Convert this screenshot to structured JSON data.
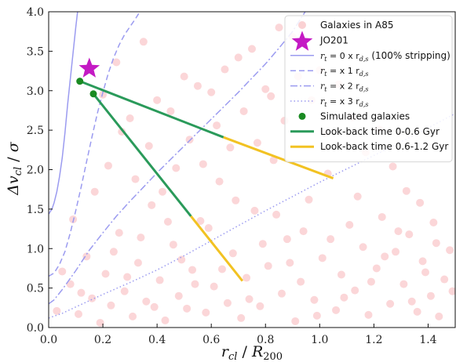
{
  "chart_data": {
    "type": "scatter",
    "xlabel": "r_cl / R_200",
    "ylabel": "Δv_cl / σ",
    "xlim": [
      0,
      1.5
    ],
    "ylim": [
      0,
      4.0
    ],
    "x_ticks": [
      "0.0",
      "0.2",
      "0.4",
      "0.6",
      "0.8",
      "1.0",
      "1.2",
      "1.4"
    ],
    "y_ticks": [
      "0.0",
      "0.5",
      "1.0",
      "1.5",
      "2.0",
      "2.5",
      "3.0",
      "3.5",
      "4.0"
    ],
    "grid": false,
    "legend_position": "top-right",
    "series": [
      {
        "name": "Galaxies in A85",
        "kind": "scatter",
        "color": "#f6a3a8",
        "note": "approximately 450 faint red points spread over the plane",
        "points": [
          [
            0.03,
            0.21
          ],
          [
            0.08,
            0.55
          ],
          [
            0.11,
            0.17
          ],
          [
            0.14,
            0.9
          ],
          [
            0.16,
            0.37
          ],
          [
            0.19,
            0.06
          ],
          [
            0.21,
            0.68
          ],
          [
            0.23,
            0.28
          ],
          [
            0.26,
            1.2
          ],
          [
            0.28,
            0.46
          ],
          [
            0.31,
            0.14
          ],
          [
            0.33,
            0.82
          ],
          [
            0.36,
            0.33
          ],
          [
            0.38,
            1.55
          ],
          [
            0.41,
            0.6
          ],
          [
            0.43,
            0.09
          ],
          [
            0.46,
            1.05
          ],
          [
            0.48,
            0.4
          ],
          [
            0.51,
            0.24
          ],
          [
            0.53,
            0.73
          ],
          [
            0.56,
            1.35
          ],
          [
            0.58,
            0.19
          ],
          [
            0.61,
            0.52
          ],
          [
            0.63,
            1.85
          ],
          [
            0.66,
            0.31
          ],
          [
            0.68,
            0.94
          ],
          [
            0.71,
            0.12
          ],
          [
            0.73,
            0.63
          ],
          [
            0.76,
            1.48
          ],
          [
            0.78,
            0.27
          ],
          [
            0.81,
            0.78
          ],
          [
            0.83,
            2.12
          ],
          [
            0.86,
            0.43
          ],
          [
            0.88,
            1.12
          ],
          [
            0.91,
            0.08
          ],
          [
            0.93,
            0.58
          ],
          [
            0.96,
            1.62
          ],
          [
            0.98,
            0.35
          ],
          [
            1.01,
            0.88
          ],
          [
            1.03,
            1.95
          ],
          [
            1.06,
            0.22
          ],
          [
            1.08,
            0.67
          ],
          [
            1.11,
            1.3
          ],
          [
            1.13,
            0.47
          ],
          [
            1.16,
            1.02
          ],
          [
            1.18,
            0.16
          ],
          [
            1.21,
            0.75
          ],
          [
            1.23,
            1.4
          ],
          [
            1.26,
            0.3
          ],
          [
            1.28,
            0.96
          ],
          [
            1.31,
            0.55
          ],
          [
            1.33,
            1.18
          ],
          [
            1.36,
            0.2
          ],
          [
            1.38,
            0.84
          ],
          [
            1.41,
            0.4
          ],
          [
            1.43,
            1.07
          ],
          [
            1.46,
            0.61
          ],
          [
            1.48,
            0.98
          ],
          [
            0.05,
            0.71
          ],
          [
            0.09,
            1.37
          ],
          [
            0.12,
            0.44
          ],
          [
            0.17,
            1.72
          ],
          [
            0.22,
            2.05
          ],
          [
            0.27,
            2.48
          ],
          [
            0.32,
            1.88
          ],
          [
            0.37,
            2.3
          ],
          [
            0.42,
            1.72
          ],
          [
            0.47,
            2.02
          ],
          [
            0.52,
            2.38
          ],
          [
            0.57,
            2.07
          ],
          [
            0.62,
            2.56
          ],
          [
            0.67,
            2.28
          ],
          [
            0.72,
            2.74
          ],
          [
            0.77,
            2.34
          ],
          [
            0.82,
            2.93
          ],
          [
            0.87,
            2.62
          ],
          [
            0.92,
            3.18
          ],
          [
            0.97,
            2.88
          ],
          [
            1.02,
            2.46
          ],
          [
            1.07,
            3.08
          ],
          [
            1.12,
            2.66
          ],
          [
            1.17,
            2.22
          ],
          [
            1.22,
            2.51
          ],
          [
            1.27,
            2.04
          ],
          [
            1.32,
            1.73
          ],
          [
            1.37,
            1.58
          ],
          [
            1.42,
            1.33
          ],
          [
            0.2,
            2.95
          ],
          [
            0.25,
            3.36
          ],
          [
            0.35,
            3.62
          ],
          [
            0.45,
            2.74
          ],
          [
            0.55,
            3.06
          ],
          [
            0.65,
            3.27
          ],
          [
            0.75,
            3.53
          ],
          [
            0.85,
            3.8
          ],
          [
            0.3,
            2.65
          ],
          [
            0.4,
            2.88
          ],
          [
            0.5,
            3.18
          ],
          [
            0.6,
            2.98
          ],
          [
            0.7,
            3.42
          ],
          [
            0.8,
            3.02
          ],
          [
            0.9,
            3.68
          ],
          [
            1.0,
            3.26
          ],
          [
            0.24,
            0.96
          ],
          [
            0.29,
            0.64
          ],
          [
            0.34,
            1.14
          ],
          [
            0.39,
            0.26
          ],
          [
            0.44,
            1.34
          ],
          [
            0.49,
            0.86
          ],
          [
            0.54,
            0.55
          ],
          [
            0.59,
            1.26
          ],
          [
            0.64,
            0.74
          ],
          [
            0.69,
            1.61
          ],
          [
            0.74,
            0.36
          ],
          [
            0.79,
            1.06
          ],
          [
            0.84,
            1.43
          ],
          [
            0.89,
            0.82
          ],
          [
            0.94,
            1.22
          ],
          [
            0.99,
            0.15
          ],
          [
            1.04,
            1.12
          ],
          [
            1.09,
            0.38
          ],
          [
            1.14,
            1.66
          ],
          [
            1.19,
            0.58
          ],
          [
            1.24,
            0.9
          ],
          [
            1.29,
            1.22
          ],
          [
            1.34,
            0.33
          ],
          [
            1.39,
            0.7
          ],
          [
            1.44,
            0.14
          ],
          [
            1.49,
            0.46
          ]
        ]
      },
      {
        "name": "JO201",
        "kind": "star",
        "color": "#c41ac4",
        "points": [
          [
            0.15,
            3.28
          ]
        ]
      },
      {
        "name": "r_t = 0 x r_d,s (100% stripping)",
        "kind": "line",
        "color": "#9b9bf0",
        "dash": "solid",
        "x": [
          0.001,
          0.003,
          0.006,
          0.01,
          0.015,
          0.02,
          0.03,
          0.04,
          0.05,
          0.06,
          0.07,
          0.08,
          0.09,
          0.1,
          0.11,
          0.12
        ],
        "y": [
          1.44,
          1.45,
          1.47,
          1.49,
          1.53,
          1.58,
          1.72,
          1.91,
          2.15,
          2.46,
          2.83,
          3.15,
          3.48,
          3.8,
          4.1,
          4.4
        ]
      },
      {
        "name": "r_t = x 1 r_d,s",
        "kind": "line",
        "color": "#9b9bf0",
        "dash": "dashed",
        "x": [
          0.0,
          0.02,
          0.04,
          0.06,
          0.08,
          0.1,
          0.12,
          0.14,
          0.16,
          0.18,
          0.2,
          0.22,
          0.24,
          0.26,
          0.28,
          0.3,
          0.32,
          0.34
        ],
        "y": [
          0.65,
          0.69,
          0.8,
          0.96,
          1.2,
          1.48,
          1.78,
          2.1,
          2.42,
          2.72,
          2.98,
          3.22,
          3.42,
          3.58,
          3.71,
          3.81,
          3.91,
          4.02
        ]
      },
      {
        "name": "r_t = x 2 r_d,s",
        "kind": "line",
        "color": "#9b9bf0",
        "dash": "dashdot",
        "x": [
          0.0,
          0.02,
          0.05,
          0.1,
          0.15,
          0.2,
          0.25,
          0.3,
          0.35,
          0.4,
          0.45,
          0.5,
          0.55,
          0.6,
          0.65,
          0.7,
          0.75,
          0.8,
          0.85,
          0.9,
          0.95
        ],
        "y": [
          0.3,
          0.35,
          0.48,
          0.72,
          0.98,
          1.2,
          1.41,
          1.6,
          1.78,
          1.96,
          2.13,
          2.3,
          2.47,
          2.64,
          2.81,
          2.98,
          3.16,
          3.34,
          3.54,
          3.75,
          4.02
        ]
      },
      {
        "name": "r_t = x 3 r_d,s",
        "kind": "line",
        "color": "#9b9bf0",
        "dash": "dotted",
        "x": [
          0.0,
          0.05,
          0.1,
          0.2,
          0.3,
          0.4,
          0.5,
          0.6,
          0.7,
          0.8,
          0.9,
          1.0,
          1.1,
          1.2,
          1.3,
          1.4,
          1.5
        ],
        "y": [
          0.12,
          0.18,
          0.26,
          0.42,
          0.57,
          0.73,
          0.91,
          1.1,
          1.29,
          1.48,
          1.66,
          1.84,
          2.01,
          2.18,
          2.35,
          2.53,
          2.71
        ]
      },
      {
        "name": "Simulated galaxies",
        "kind": "marker",
        "color": "#1a8a22",
        "points": [
          [
            0.115,
            3.12
          ],
          [
            0.165,
            2.96
          ]
        ]
      },
      {
        "name": "Look-back time 0-0.6 Gyr",
        "kind": "segment",
        "color": "#2a9a5a",
        "lines": [
          [
            [
              0.115,
              3.12
            ],
            [
              0.645,
              2.41
            ]
          ],
          [
            [
              0.165,
              2.96
            ],
            [
              0.525,
              1.41
            ]
          ]
        ]
      },
      {
        "name": "Look-back time 0.6-1.2 Gyr",
        "kind": "segment",
        "color": "#f2c222",
        "lines": [
          [
            [
              0.645,
              2.41
            ],
            [
              1.05,
              1.89
            ]
          ],
          [
            [
              0.525,
              1.41
            ],
            [
              0.715,
              0.59
            ]
          ]
        ]
      }
    ]
  },
  "legend": {
    "items": [
      {
        "label": "Galaxies in A85",
        "symbol": "dot",
        "color": "#f6a3a8"
      },
      {
        "label": "JO201",
        "symbol": "star",
        "color": "#c41ac4"
      },
      {
        "prefix": "r",
        "sub": "t",
        "label": " = 0 x r",
        "sub2": "d,s",
        "suffix": " (100% stripping)",
        "symbol": "solid",
        "color": "#9b9bf0"
      },
      {
        "prefix": "r",
        "sub": "t",
        "label": " = x 1 r",
        "sub2": "d,s",
        "suffix": "",
        "symbol": "dashed",
        "color": "#9b9bf0"
      },
      {
        "prefix": "r",
        "sub": "t",
        "label": " = x 2 r",
        "sub2": "d,s",
        "suffix": "",
        "symbol": "dashdot",
        "color": "#9b9bf0"
      },
      {
        "prefix": "r",
        "sub": "t",
        "label": " = x 3 r",
        "sub2": "d,s",
        "suffix": "",
        "symbol": "dotted",
        "color": "#9b9bf0"
      },
      {
        "label": "Simulated galaxies",
        "symbol": "marker",
        "color": "#1a8a22"
      },
      {
        "label": "Look-back time 0-0.6 Gyr",
        "symbol": "green-line",
        "color": "#2a9a5a"
      },
      {
        "label": "Look-back time 0.6-1.2 Gyr",
        "symbol": "yellow-line",
        "color": "#f2c222"
      }
    ]
  }
}
